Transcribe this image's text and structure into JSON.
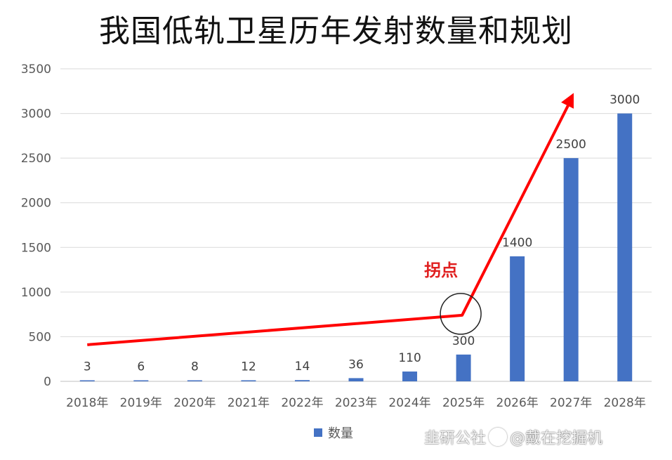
{
  "chart_data": {
    "type": "bar",
    "title": "我国低轨卫星历年发射数量和规划",
    "categories": [
      "2018年",
      "2019年",
      "2020年",
      "2021年",
      "2022年",
      "2023年",
      "2024年",
      "2025年",
      "2026年",
      "2027年",
      "2028年"
    ],
    "series": [
      {
        "name": "数量",
        "values": [
          3,
          6,
          8,
          12,
          14,
          36,
          110,
          300,
          1400,
          2500,
          3000
        ],
        "color": "#4472C4"
      }
    ],
    "y_ticks": [
      "0",
      "500",
      "1000",
      "1500",
      "2000",
      "2500",
      "3000",
      "3500"
    ],
    "ylim": [
      0,
      3500
    ],
    "grid": true,
    "legend_position": "bottom",
    "annotation": {
      "text": "拐点",
      "color": "#E02020",
      "trend_arrow_color": "#FF0000"
    }
  },
  "watermark": {
    "text_left": "韭研公社",
    "text_right": "@戴在挖掘机"
  }
}
